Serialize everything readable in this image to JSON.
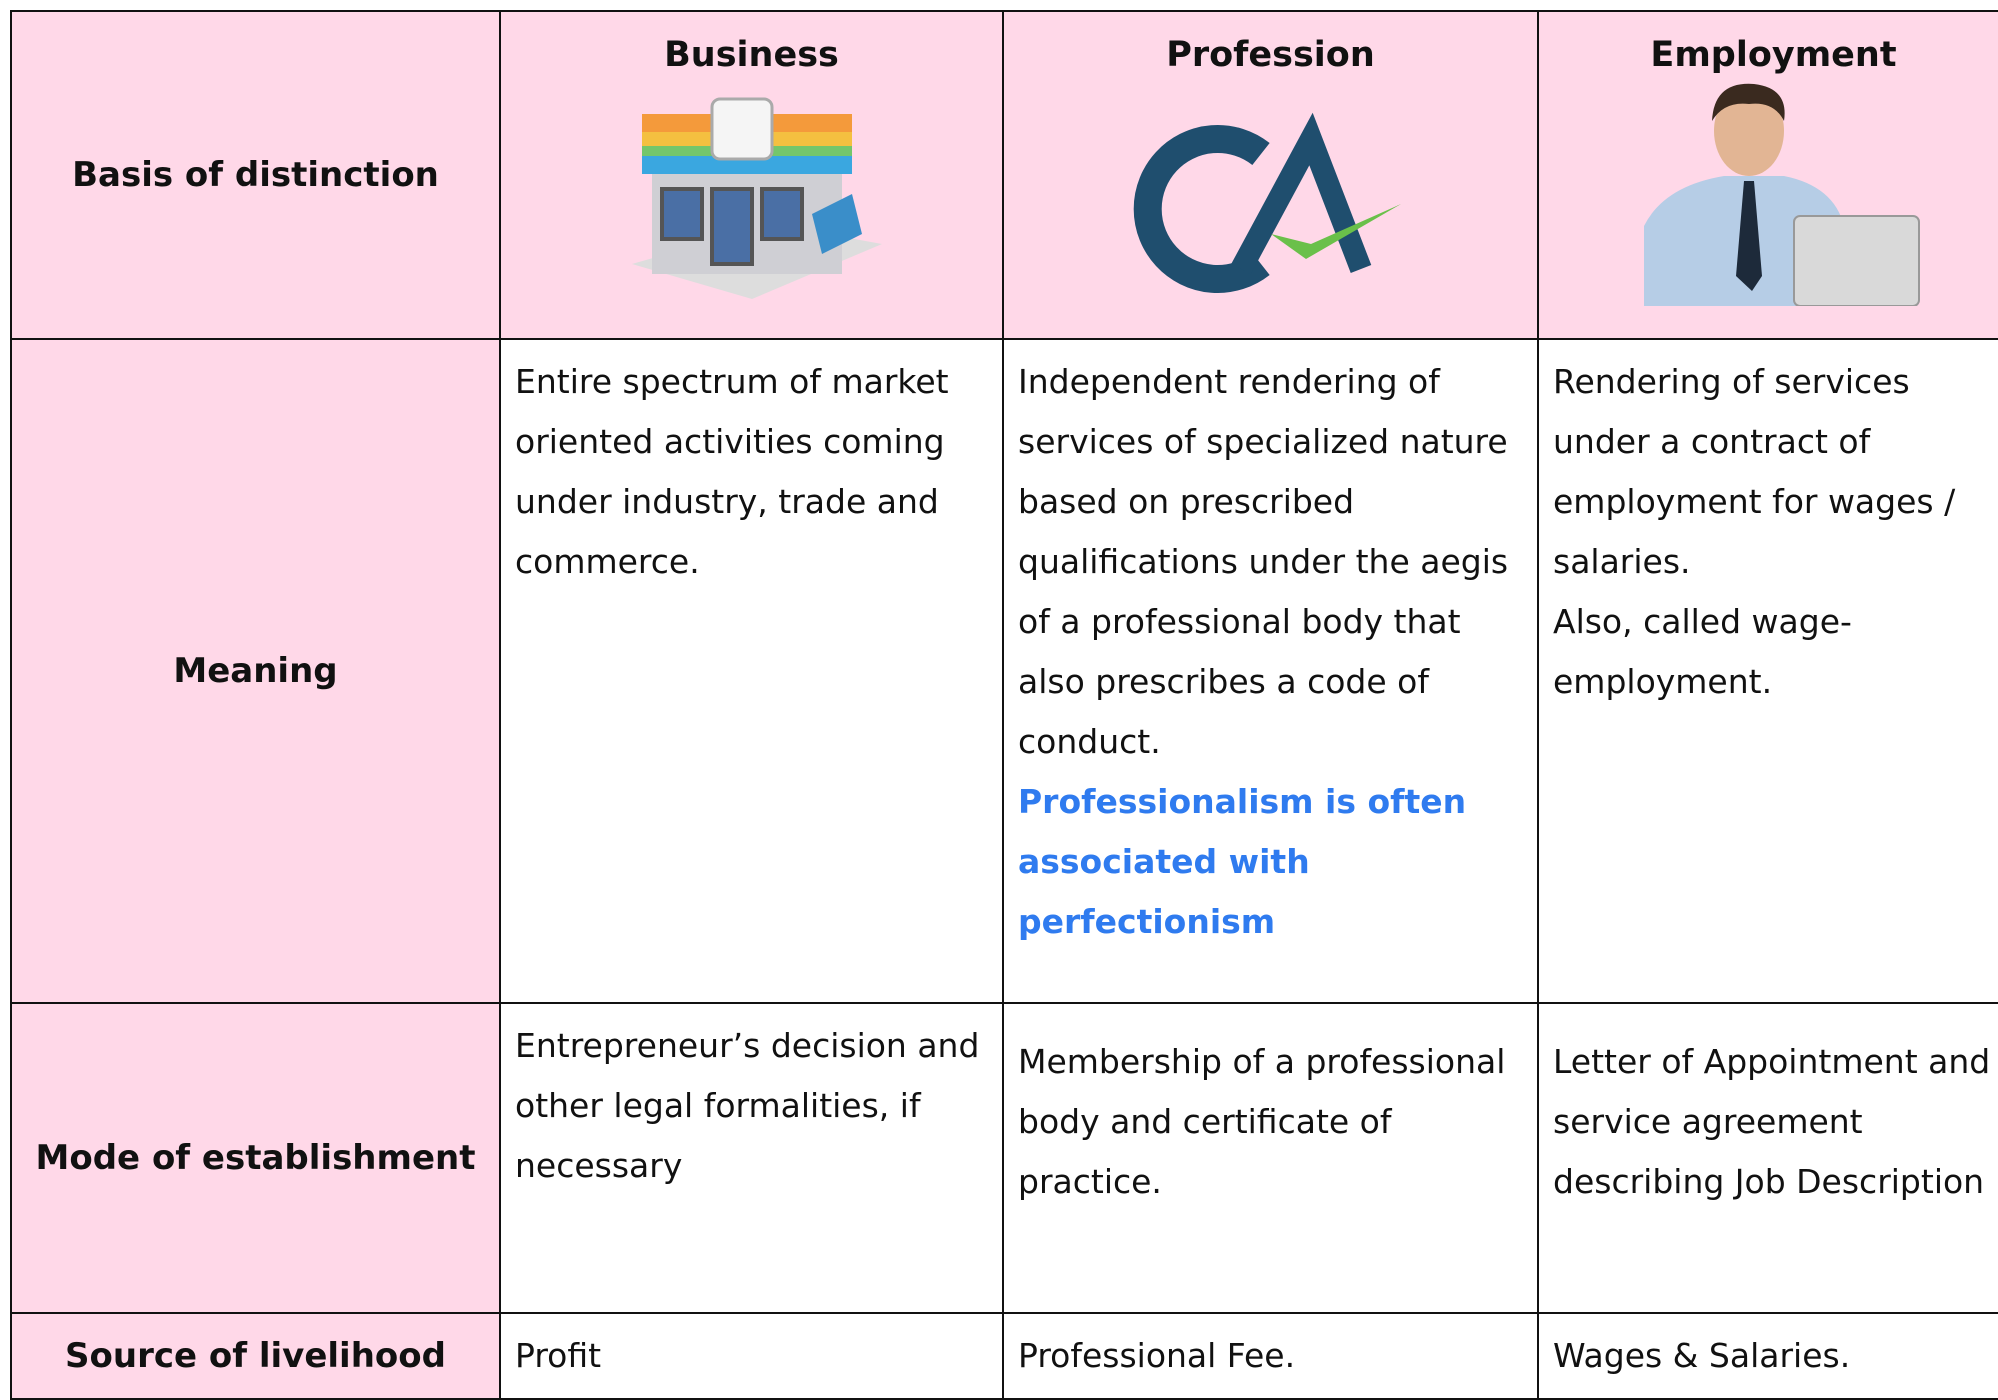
{
  "table": {
    "columns": [
      "Basis of distinction",
      "Business",
      "Profession",
      "Employment"
    ],
    "rows": [
      {
        "label": "Meaning",
        "cells": [
          [
            "Entire spectrum of market oriented activities coming under industry, trade and commerce."
          ],
          [
            "Independent rendering of services of specialized nature based on prescribed qualifications under the aegis of a professional body that also prescribes a code of conduct.",
            "Professionalism is often associated with perfectionism"
          ],
          [
            "Rendering of services under a contract of employment for wages / salaries.",
            "Also, called wage-employment."
          ]
        ]
      },
      {
        "label": "Mode of establishment",
        "cells": [
          [
            "Entrepreneur’s decision and other legal formalities, if necessary"
          ],
          [
            "Membership of a professional body and certificate of practice."
          ],
          [
            "Letter of Appointment and service agreement describing Job Description"
          ]
        ]
      },
      {
        "label": "Source of livelihood",
        "cells": [
          [
            "Profit"
          ],
          [
            "Professional Fee."
          ],
          [
            "Wages & Salaries."
          ]
        ]
      }
    ]
  }
}
